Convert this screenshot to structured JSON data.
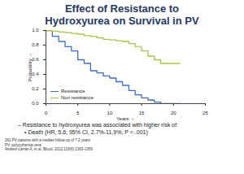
{
  "chart_data": {
    "type": "line",
    "title": "Effect of Resistance to Hydroxyurea on Survival in PV",
    "x_label": "Years",
    "y_label": "Probability",
    "x": [
      0,
      1,
      2,
      3,
      4,
      5,
      6,
      7,
      8,
      9,
      10,
      11,
      12,
      13,
      14,
      15,
      16,
      17,
      18,
      19,
      20,
      21
    ],
    "series": [
      {
        "name": "Resistance",
        "color": "#3a6fc4",
        "values": [
          1.0,
          0.92,
          0.85,
          0.78,
          0.72,
          0.6,
          0.55,
          0.45,
          0.42,
          0.38,
          0.35,
          0.3,
          0.25,
          0.18,
          0.12,
          0.08,
          0.05,
          0.02,
          0.0,
          0.0,
          0.0,
          0.0
        ]
      },
      {
        "name": "Non resistance",
        "color": "#a8c64a",
        "values": [
          1.0,
          0.99,
          0.98,
          0.97,
          0.96,
          0.95,
          0.93,
          0.92,
          0.9,
          0.88,
          0.87,
          0.86,
          0.85,
          0.82,
          0.78,
          0.72,
          0.65,
          0.6,
          0.55,
          0.55,
          0.55,
          0.55
        ]
      }
    ],
    "line_style": "step",
    "xlim": [
      0,
      25
    ],
    "xticks": [
      0,
      5,
      10,
      15,
      20,
      25
    ],
    "ylim": [
      0,
      1
    ],
    "yticks": [
      {
        "value": 0,
        "label": "0.0"
      },
      0.2,
      0.4,
      0.6,
      0.8,
      {
        "value": 1,
        "label": "1.0"
      }
    ],
    "legend": "bottom-left",
    "annotations": [
      "– Resistance to hydroxyurea was associated with higher risk of:",
      "• Death (HR, 5.6; 95% CI, 2.7%-11.9%; P < .001)"
    ],
    "footnotes": [
      "261 PV patients with a median follow-up of 7.2 years",
      "PV: polycythemia vera",
      "Alvarez-Larrán A, et al. Blood. 2012;119(6):1363-1369."
    ]
  }
}
